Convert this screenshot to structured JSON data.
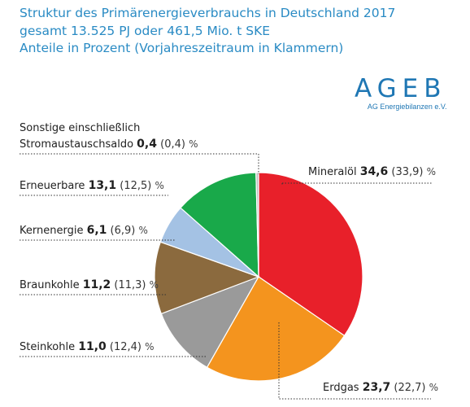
{
  "header": {
    "title": "Struktur des Primärenergieverbrauchs in Deutschland 2017",
    "subtitle1": "gesamt 13.525 PJ oder 461,5 Mio. t SKE",
    "subtitle2": "Anteile in Prozent (Vorjahreszeitraum in Klammern)"
  },
  "logo": {
    "word": "AGEB",
    "sub": "AG Energiebilanzen e.V."
  },
  "colors": {
    "mineraloel": "#e8202a",
    "erdgas": "#f4941e",
    "steinkohle": "#9a9a9a",
    "braunkohle": "#8b6a3e",
    "kernenergie": "#a4c2e4",
    "erneuerbare": "#19a94a",
    "sonstige": "#bfbfbf"
  },
  "chart_data": {
    "type": "pie",
    "title": "Struktur des Primärenergieverbrauchs in Deutschland 2017",
    "unit": "%",
    "slices": [
      {
        "key": "mineraloel",
        "name": "Mineralöl",
        "value": 34.6,
        "value_label": "34,6",
        "previous_label": "(33,9)"
      },
      {
        "key": "erdgas",
        "name": "Erdgas",
        "value": 23.7,
        "value_label": "23,7",
        "previous_label": "(22,7)"
      },
      {
        "key": "steinkohle",
        "name": "Steinkohle",
        "value": 11.0,
        "value_label": "11,0",
        "previous_label": "(12,4)"
      },
      {
        "key": "braunkohle",
        "name": "Braunkohle",
        "value": 11.2,
        "value_label": "11,2",
        "previous_label": "(11,3)"
      },
      {
        "key": "kernenergie",
        "name": "Kernenergie",
        "value": 6.1,
        "value_label": "6,1",
        "previous_label": "(6,9)"
      },
      {
        "key": "erneuerbare",
        "name": "Erneuerbare",
        "value": 13.1,
        "value_label": "13,1",
        "previous_label": "(12,5)"
      },
      {
        "key": "sonstige",
        "name_line1": "Sonstige einschließlich",
        "name": "Stromaustauschsaldo",
        "value": 0.4,
        "value_label": "0,4",
        "previous_label": "(0,4)"
      }
    ]
  }
}
